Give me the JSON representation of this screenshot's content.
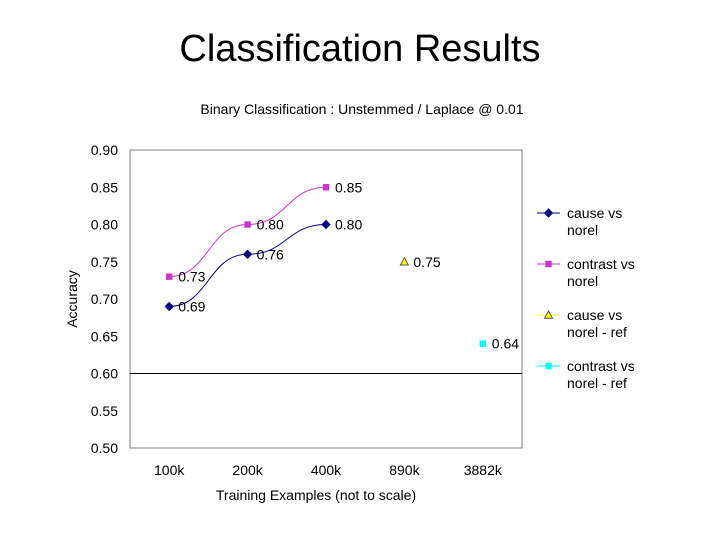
{
  "slide": {
    "title": "Classification Results"
  },
  "chart_data": {
    "type": "line",
    "title": "Binary Classification : Unstemmed / Laplace @ 0.01",
    "xlabel": "Training Examples (not to scale)",
    "ylabel": "Accuracy",
    "categories": [
      "100k",
      "200k",
      "400k",
      "890k",
      "3882k"
    ],
    "ylim": [
      0.5,
      0.9
    ],
    "yticks": [
      "0.90",
      "0.85",
      "0.80",
      "0.75",
      "0.70",
      "0.65",
      "0.60",
      "0.55",
      "0.50"
    ],
    "reference_line": 0.6,
    "grid": false,
    "legend_position": "right",
    "series": [
      {
        "name": "cause vs norel",
        "color": "#000080",
        "marker": "diamond",
        "line": true,
        "values": [
          0.69,
          0.76,
          0.8,
          null,
          null
        ],
        "labels": [
          "0.69",
          "0.76",
          "0.80",
          "",
          ""
        ]
      },
      {
        "name": "contrast vs norel",
        "color": "#cc33cc",
        "marker": "square",
        "line": true,
        "values": [
          0.73,
          0.8,
          0.85,
          null,
          null
        ],
        "labels": [
          "0.73",
          "0.80",
          "0.85",
          "",
          ""
        ]
      },
      {
        "name": "cause vs norel - ref",
        "color": "#ffff00",
        "marker": "triangle",
        "line": false,
        "values": [
          null,
          null,
          null,
          0.75,
          null
        ],
        "labels": [
          "",
          "",
          "",
          "0.75",
          ""
        ]
      },
      {
        "name": "contrast vs norel - ref",
        "color": "#00ffff",
        "marker": "square",
        "line": false,
        "values": [
          null,
          null,
          null,
          null,
          0.64
        ],
        "labels": [
          "",
          "",
          "",
          "",
          "0.64"
        ]
      }
    ]
  }
}
